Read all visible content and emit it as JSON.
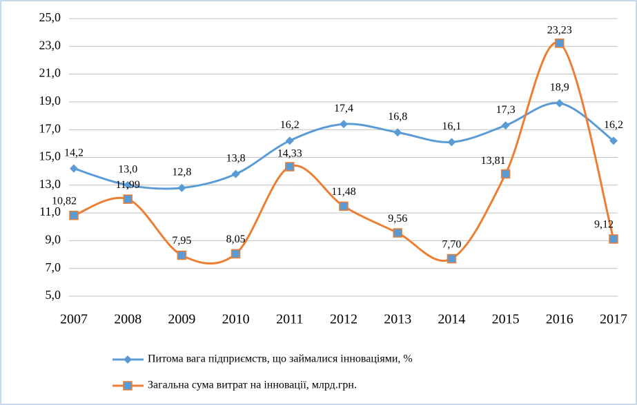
{
  "chart_data": {
    "type": "line",
    "categories": [
      "2007",
      "2008",
      "2009",
      "2010",
      "2011",
      "2012",
      "2013",
      "2014",
      "2015",
      "2016",
      "2017"
    ],
    "series": [
      {
        "name": "Питома вага підприємств, що займалися інноваціями, %",
        "color": "#5b9bd5",
        "marker": "diamond",
        "values": [
          14.2,
          13.0,
          12.8,
          13.8,
          16.2,
          17.4,
          16.8,
          16.1,
          17.3,
          18.9,
          16.2
        ],
        "value_labels": [
          "14,2",
          "13,0",
          "12,8",
          "13,8",
          "16,2",
          "17,4",
          "16,8",
          "16,1",
          "17,3",
          "18,9",
          "16,2"
        ]
      },
      {
        "name": "Загальна сума витрат на інновації, млрд.грн.",
        "color": "#ed7d31",
        "marker": "square",
        "values": [
          10.82,
          11.99,
          7.95,
          8.05,
          14.33,
          11.48,
          9.56,
          7.7,
          13.81,
          23.23,
          9.12
        ],
        "value_labels": [
          "10,82",
          "11,99",
          "7,95",
          "8,05",
          "14,33",
          "11,48",
          "9,56",
          "7,70",
          "13,81",
          "23,23",
          "9,12"
        ]
      }
    ],
    "ylim": [
      5,
      25
    ],
    "yticks": [
      {
        "value": 5,
        "label": "5,0"
      },
      {
        "value": 7,
        "label": "7,0"
      },
      {
        "value": 9,
        "label": "9,0"
      },
      {
        "value": 11,
        "label": "11,0"
      },
      {
        "value": 13,
        "label": "13,0"
      },
      {
        "value": 15,
        "label": "15,0"
      },
      {
        "value": 17,
        "label": "17,0"
      },
      {
        "value": 19,
        "label": "19,0"
      },
      {
        "value": 21,
        "label": "21,0"
      },
      {
        "value": 23,
        "label": "23,0"
      },
      {
        "value": 25,
        "label": "25,0"
      }
    ],
    "grid": true,
    "legend": "bottom"
  }
}
